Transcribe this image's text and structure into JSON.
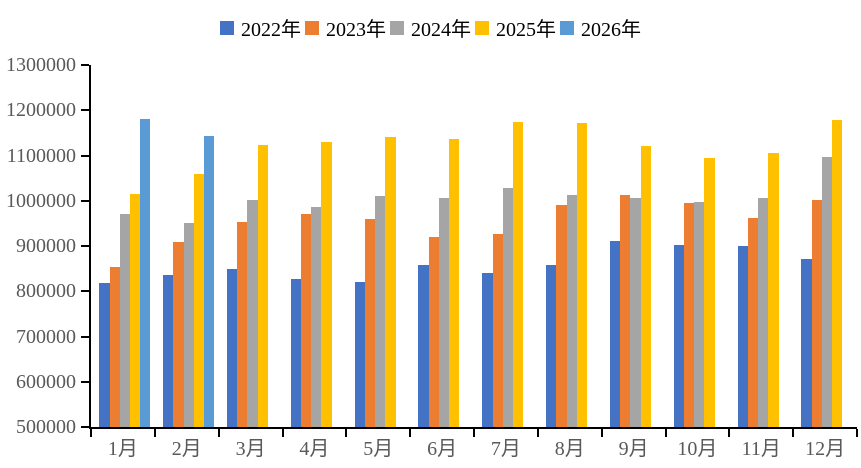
{
  "chart_data": {
    "type": "bar",
    "title": "",
    "xlabel": "",
    "ylabel": "",
    "categories": [
      "1月",
      "2月",
      "3月",
      "4月",
      "5月",
      "6月",
      "7月",
      "8月",
      "9月",
      "10月",
      "11月",
      "12月"
    ],
    "series": [
      {
        "name": "2022年",
        "color": "#4472C4",
        "values": [
          819000,
          837000,
          849000,
          827000,
          821000,
          858000,
          841000,
          858000,
          910000,
          903000,
          901000,
          871000
        ]
      },
      {
        "name": "2023年",
        "color": "#ED7D31",
        "values": [
          853000,
          909000,
          953000,
          971000,
          960000,
          921000,
          927000,
          990000,
          1012000,
          995000,
          963000,
          1002000
        ]
      },
      {
        "name": "2024年",
        "color": "#A5A5A5",
        "values": [
          970000,
          951000,
          1001000,
          986000,
          1010000,
          1006000,
          1029000,
          1013000,
          1006000,
          998000,
          1006000,
          1096000
        ]
      },
      {
        "name": "2025年",
        "color": "#FFC000",
        "values": [
          1014000,
          1059000,
          1124000,
          1129000,
          1141000,
          1137000,
          1175000,
          1172000,
          1122000,
          1095000,
          1105000,
          1179000
        ]
      },
      {
        "name": "2026年",
        "color": "#5B9BD5",
        "values": [
          1180000,
          1143000,
          null,
          null,
          null,
          null,
          null,
          null,
          null,
          null,
          null,
          null
        ]
      }
    ],
    "ylim": [
      500000,
      1300000
    ],
    "y_tick_step": 100000,
    "y_tick_labels": [
      "1300000",
      "1200000",
      "1100000",
      "1000000",
      "900000",
      "800000",
      "700000",
      "600000",
      "500000"
    ],
    "grid": false,
    "legend_position": "top",
    "axis_color": "#000000",
    "label_color": "#595959",
    "legend_text_color": "#000000"
  }
}
